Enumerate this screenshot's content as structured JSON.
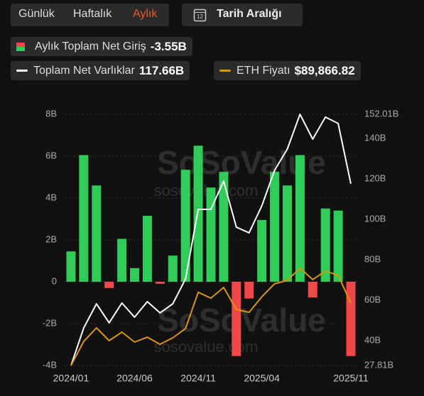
{
  "ui": {
    "tabs": [
      "Günlük",
      "Haftalık",
      "Aylık"
    ],
    "active_tab": 2,
    "date_button": "Tarih Aralığı",
    "calendar_icon": "12"
  },
  "chart_data": {
    "type": "bar",
    "watermark": [
      "SoSoValue",
      "sosovalue.com"
    ],
    "categories": [
      "2024/01",
      null,
      null,
      null,
      null,
      "2024/06",
      null,
      null,
      null,
      null,
      "2024/11",
      null,
      null,
      null,
      null,
      "2025/04",
      null,
      null,
      null,
      null,
      null,
      null,
      "2025/11"
    ],
    "series": [
      {
        "name": "Aylık Toplam Net Giriş",
        "type": "bar",
        "latest_label": "-3.55B",
        "color": "#2fcc57",
        "negative_color": "#f04848",
        "values": [
          1.45,
          6.05,
          4.6,
          -0.3,
          2.05,
          0.65,
          3.15,
          -0.1,
          1.25,
          5.35,
          6.5,
          4.5,
          5.25,
          -3.55,
          -0.8,
          2.95,
          5.25,
          4.6,
          6.05,
          -0.75,
          3.5,
          3.4,
          -3.55
        ]
      },
      {
        "name": "Toplam Net Varlıklar",
        "type": "line",
        "axis": "y2",
        "latest_label": "117.66B",
        "color": "#ffffff",
        "values": [
          27.81,
          46.4,
          58.3,
          48.9,
          58.7,
          51.7,
          59.4,
          53.8,
          58.3,
          70.6,
          105,
          105,
          119,
          96.2,
          93.4,
          106.8,
          124.3,
          134.8,
          152.01,
          139.7,
          150.6,
          147.5,
          117.66
        ]
      },
      {
        "name": "ETH Fiyatı",
        "type": "line",
        "axis": "y2",
        "latest_label": "$89,866.82",
        "color": "#d9950f",
        "values": [
          27.81,
          39.7,
          46.4,
          40.1,
          44.3,
          39.4,
          41.8,
          38.3,
          41.5,
          46.1,
          64,
          61.1,
          66.4,
          55.5,
          54.1,
          61.8,
          68.2,
          69.9,
          75.9,
          70.3,
          74.5,
          72.4,
          58.7
        ]
      }
    ],
    "ylim": [
      -4,
      8
    ],
    "yticks": [
      {
        "value": -4,
        "label": "-4B"
      },
      {
        "value": -2,
        "label": "-2B"
      },
      {
        "value": 0,
        "label": "0"
      },
      {
        "value": 2,
        "label": "2B"
      },
      {
        "value": 4,
        "label": "4B"
      },
      {
        "value": 6,
        "label": "6B"
      },
      {
        "value": 8,
        "label": "8B"
      }
    ],
    "y2lim": [
      27.81,
      152.01
    ],
    "y2ticks": [
      {
        "value": 27.81,
        "label": "27.81B"
      },
      {
        "value": 40,
        "label": "40B"
      },
      {
        "value": 60,
        "label": "60B"
      },
      {
        "value": 80,
        "label": "80B"
      },
      {
        "value": 100,
        "label": "100B"
      },
      {
        "value": 120,
        "label": "120B"
      },
      {
        "value": 140,
        "label": "140B"
      },
      {
        "value": 152.01,
        "label": "152.01B"
      }
    ],
    "grid": true
  }
}
